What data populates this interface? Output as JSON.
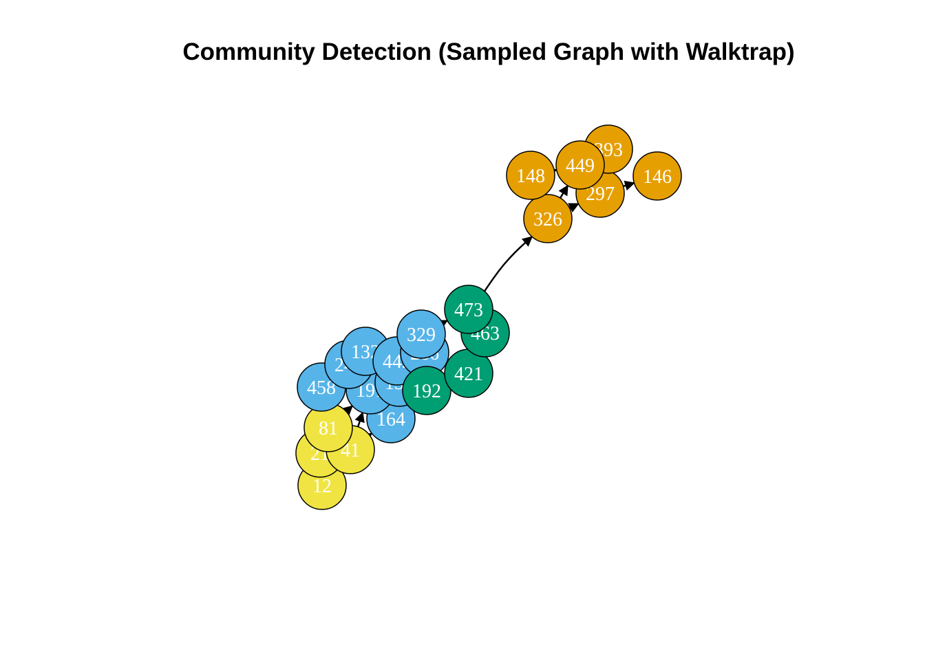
{
  "title": "Community Detection (Sampled Graph with Walktrap)",
  "communities": [
    {
      "id": "orange",
      "color": "#E69F00"
    },
    {
      "id": "green",
      "color": "#009E73"
    },
    {
      "id": "blue",
      "color": "#56B4E9"
    },
    {
      "id": "yellow",
      "color": "#F0E442"
    }
  ],
  "nodes": [
    {
      "label": "12",
      "community": "yellow"
    },
    {
      "label": "21",
      "community": "yellow"
    },
    {
      "label": "41",
      "community": "yellow"
    },
    {
      "label": "81",
      "community": "yellow"
    },
    {
      "label": "164",
      "community": "blue"
    },
    {
      "label": "458",
      "community": "blue"
    },
    {
      "label": "191",
      "community": "blue"
    },
    {
      "label": "243",
      "community": "blue"
    },
    {
      "label": "132",
      "community": "blue"
    },
    {
      "label": "135",
      "community": "blue"
    },
    {
      "label": "442",
      "community": "blue"
    },
    {
      "label": "266",
      "community": "blue"
    },
    {
      "label": "329",
      "community": "blue"
    },
    {
      "label": "192",
      "community": "green"
    },
    {
      "label": "421",
      "community": "green"
    },
    {
      "label": "463",
      "community": "green"
    },
    {
      "label": "473",
      "community": "green"
    },
    {
      "label": "326",
      "community": "orange"
    },
    {
      "label": "148",
      "community": "orange"
    },
    {
      "label": "297",
      "community": "orange"
    },
    {
      "label": "146",
      "community": "orange"
    },
    {
      "label": "393",
      "community": "orange"
    },
    {
      "label": "449",
      "community": "orange"
    }
  ],
  "edges": [
    {
      "from": "473",
      "to": "326"
    },
    {
      "from": "326",
      "to": "449"
    },
    {
      "from": "326",
      "to": "297"
    },
    {
      "from": "297",
      "to": "146"
    },
    {
      "from": "297",
      "to": "449"
    },
    {
      "from": "449",
      "to": "393"
    },
    {
      "from": "148",
      "to": "449"
    },
    {
      "from": "473",
      "to": "463"
    },
    {
      "from": "329",
      "to": "473"
    },
    {
      "from": "421",
      "to": "192"
    },
    {
      "from": "463",
      "to": "421"
    },
    {
      "from": "192",
      "to": "135"
    },
    {
      "from": "266",
      "to": "329"
    },
    {
      "from": "442",
      "to": "266"
    },
    {
      "from": "135",
      "to": "442"
    },
    {
      "from": "132",
      "to": "442"
    },
    {
      "from": "243",
      "to": "132"
    },
    {
      "from": "191",
      "to": "243"
    },
    {
      "from": "458",
      "to": "191"
    },
    {
      "from": "191",
      "to": "164"
    },
    {
      "from": "81",
      "to": "458"
    },
    {
      "from": "81",
      "to": "191"
    },
    {
      "from": "41",
      "to": "164"
    },
    {
      "from": "41",
      "to": "191"
    },
    {
      "from": "21",
      "to": "81"
    },
    {
      "from": "12",
      "to": "21"
    },
    {
      "from": "41",
      "to": "81"
    }
  ]
}
